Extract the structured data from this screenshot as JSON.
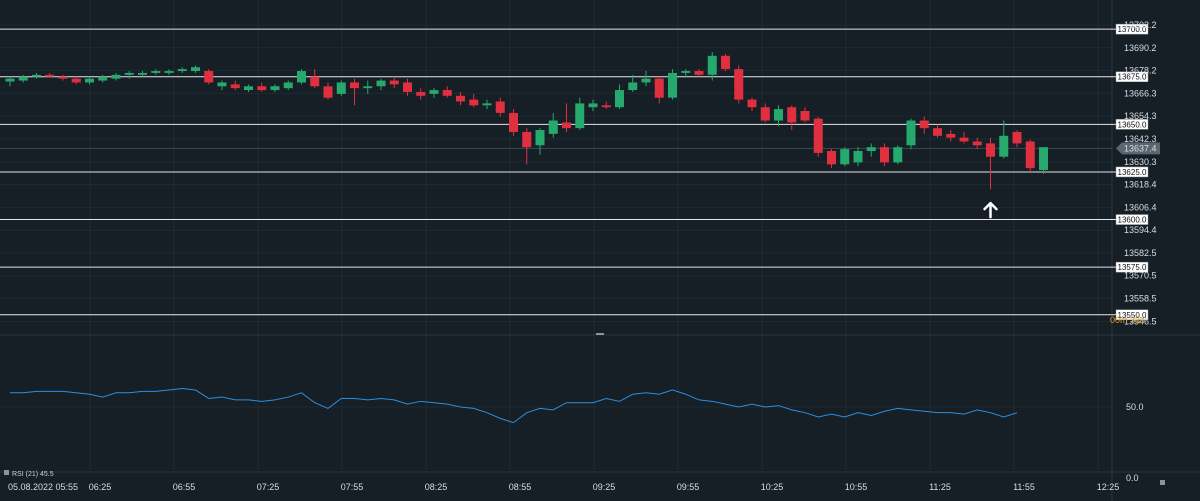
{
  "chart_data": {
    "type": "candlestick",
    "price_axis": {
      "ticks": [
        "13702.2",
        "13690.2",
        "13678.2",
        "13666.3",
        "13654.3",
        "13642.3",
        "13630.3",
        "13618.4",
        "13606.4",
        "13594.4",
        "13582.5",
        "13570.5",
        "13558.5",
        "13546.5"
      ],
      "ylim": [
        13542,
        13709
      ]
    },
    "levels": [
      13700.0,
      13675.0,
      13650.0,
      13625.0,
      13600.0,
      13575.0,
      13550.0
    ],
    "level_labels": [
      "13700.0",
      "13675.0",
      "13650.0",
      "13625.0",
      "13600.0",
      "13575.0",
      "13550.0"
    ],
    "current_price": 13637.4,
    "current_price_label": "13637.4",
    "countdown": {
      "minutes": "00m",
      "seconds": "33s"
    },
    "time_axis": {
      "date_label": "05.08.2022 05:55",
      "labels": [
        "06:25",
        "06:55",
        "07:25",
        "07:55",
        "08:25",
        "08:55",
        "09:25",
        "09:55",
        "10:25",
        "10:55",
        "11:25",
        "11:55",
        "12:25"
      ]
    },
    "candles": [
      {
        "o": 13672.5,
        "h": 13675,
        "l": 13670,
        "c": 13674
      },
      {
        "o": 13673,
        "h": 13676,
        "l": 13672,
        "c": 13675
      },
      {
        "o": 13675,
        "h": 13677,
        "l": 13674,
        "c": 13676
      },
      {
        "o": 13676,
        "h": 13677,
        "l": 13675,
        "c": 13675
      },
      {
        "o": 13675,
        "h": 13676,
        "l": 13673,
        "c": 13674
      },
      {
        "o": 13674,
        "h": 13675,
        "l": 13671,
        "c": 13672
      },
      {
        "o": 13672,
        "h": 13675,
        "l": 13671,
        "c": 13674
      },
      {
        "o": 13673,
        "h": 13676,
        "l": 13672,
        "c": 13675
      },
      {
        "o": 13674,
        "h": 13677,
        "l": 13673,
        "c": 13676
      },
      {
        "o": 13676,
        "h": 13678,
        "l": 13674,
        "c": 13677
      },
      {
        "o": 13676,
        "h": 13678,
        "l": 13675,
        "c": 13677
      },
      {
        "o": 13677,
        "h": 13679,
        "l": 13676,
        "c": 13678
      },
      {
        "o": 13677,
        "h": 13679,
        "l": 13676,
        "c": 13678
      },
      {
        "o": 13678,
        "h": 13680,
        "l": 13677,
        "c": 13679
      },
      {
        "o": 13678,
        "h": 13681,
        "l": 13677,
        "c": 13680
      },
      {
        "o": 13678,
        "h": 13679,
        "l": 13671,
        "c": 13672
      },
      {
        "o": 13670,
        "h": 13673,
        "l": 13668,
        "c": 13672
      },
      {
        "o": 13671,
        "h": 13673,
        "l": 13668,
        "c": 13669
      },
      {
        "o": 13668,
        "h": 13671,
        "l": 13667,
        "c": 13670
      },
      {
        "o": 13670,
        "h": 13672,
        "l": 13667,
        "c": 13668
      },
      {
        "o": 13668,
        "h": 13671,
        "l": 13667,
        "c": 13670
      },
      {
        "o": 13669,
        "h": 13673,
        "l": 13668,
        "c": 13672
      },
      {
        "o": 13672,
        "h": 13679,
        "l": 13671,
        "c": 13678
      },
      {
        "o": 13675,
        "h": 13679,
        "l": 13669,
        "c": 13670
      },
      {
        "o": 13670,
        "h": 13672,
        "l": 13663,
        "c": 13664
      },
      {
        "o": 13666,
        "h": 13673,
        "l": 13665,
        "c": 13672
      },
      {
        "o": 13672,
        "h": 13674,
        "l": 13660,
        "c": 13669
      },
      {
        "o": 13669,
        "h": 13673,
        "l": 13666,
        "c": 13670
      },
      {
        "o": 13670,
        "h": 13674,
        "l": 13668,
        "c": 13673
      },
      {
        "o": 13673,
        "h": 13675,
        "l": 13669,
        "c": 13671
      },
      {
        "o": 13672,
        "h": 13674,
        "l": 13665,
        "c": 13667
      },
      {
        "o": 13667,
        "h": 13669,
        "l": 13663,
        "c": 13665
      },
      {
        "o": 13666,
        "h": 13669,
        "l": 13664,
        "c": 13668
      },
      {
        "o": 13668,
        "h": 13670,
        "l": 13664,
        "c": 13665
      },
      {
        "o": 13665,
        "h": 13667,
        "l": 13660,
        "c": 13662
      },
      {
        "o": 13663,
        "h": 13666,
        "l": 13659,
        "c": 13660
      },
      {
        "o": 13660,
        "h": 13663,
        "l": 13658,
        "c": 13661
      },
      {
        "o": 13662,
        "h": 13664,
        "l": 13654,
        "c": 13656
      },
      {
        "o": 13656,
        "h": 13658,
        "l": 13644,
        "c": 13646
      },
      {
        "o": 13646,
        "h": 13648,
        "l": 13629,
        "c": 13638
      },
      {
        "o": 13639,
        "h": 13648,
        "l": 13634,
        "c": 13647
      },
      {
        "o": 13645,
        "h": 13656,
        "l": 13643,
        "c": 13652
      },
      {
        "o": 13651,
        "h": 13661,
        "l": 13646,
        "c": 13648
      },
      {
        "o": 13648,
        "h": 13664,
        "l": 13647,
        "c": 13661
      },
      {
        "o": 13659,
        "h": 13663,
        "l": 13657,
        "c": 13661
      },
      {
        "o": 13660,
        "h": 13662,
        "l": 13658,
        "c": 13659
      },
      {
        "o": 13659,
        "h": 13671,
        "l": 13658,
        "c": 13668
      },
      {
        "o": 13668,
        "h": 13676,
        "l": 13667,
        "c": 13672
      },
      {
        "o": 13672,
        "h": 13678,
        "l": 13670,
        "c": 13674
      },
      {
        "o": 13674,
        "h": 13675,
        "l": 13661,
        "c": 13664
      },
      {
        "o": 13664,
        "h": 13679,
        "l": 13663,
        "c": 13677
      },
      {
        "o": 13677,
        "h": 13679,
        "l": 13675,
        "c": 13678
      },
      {
        "o": 13678,
        "h": 13679,
        "l": 13675,
        "c": 13676
      },
      {
        "o": 13676,
        "h": 13688,
        "l": 13673,
        "c": 13686
      },
      {
        "o": 13686,
        "h": 13687,
        "l": 13678,
        "c": 13679
      },
      {
        "o": 13679,
        "h": 13681,
        "l": 13661,
        "c": 13663
      },
      {
        "o": 13663,
        "h": 13664,
        "l": 13657,
        "c": 13659
      },
      {
        "o": 13659,
        "h": 13661,
        "l": 13651,
        "c": 13652
      },
      {
        "o": 13652,
        "h": 13660,
        "l": 13649,
        "c": 13658
      },
      {
        "o": 13659,
        "h": 13660,
        "l": 13647,
        "c": 13651
      },
      {
        "o": 13657,
        "h": 13659,
        "l": 13651,
        "c": 13652
      },
      {
        "o": 13653,
        "h": 13654,
        "l": 13633,
        "c": 13635
      },
      {
        "o": 13636,
        "h": 13637,
        "l": 13627,
        "c": 13629
      },
      {
        "o": 13629,
        "h": 13638,
        "l": 13628,
        "c": 13637
      },
      {
        "o": 13630,
        "h": 13638,
        "l": 13628,
        "c": 13636
      },
      {
        "o": 13636,
        "h": 13640,
        "l": 13633,
        "c": 13638
      },
      {
        "o": 13638,
        "h": 13640,
        "l": 13628,
        "c": 13630
      },
      {
        "o": 13630,
        "h": 13639,
        "l": 13629,
        "c": 13638
      },
      {
        "o": 13639,
        "h": 13653,
        "l": 13637,
        "c": 13652
      },
      {
        "o": 13652,
        "h": 13654,
        "l": 13645,
        "c": 13648
      },
      {
        "o": 13648,
        "h": 13650,
        "l": 13643,
        "c": 13644
      },
      {
        "o": 13645,
        "h": 13647,
        "l": 13641,
        "c": 13643
      },
      {
        "o": 13643,
        "h": 13646,
        "l": 13640,
        "c": 13641
      },
      {
        "o": 13641,
        "h": 13643,
        "l": 13637,
        "c": 13639
      },
      {
        "o": 13640,
        "h": 13643,
        "l": 13616,
        "c": 13633
      },
      {
        "o": 13633,
        "h": 13652,
        "l": 13632,
        "c": 13644
      },
      {
        "o": 13646,
        "h": 13647,
        "l": 13638,
        "c": 13640
      },
      {
        "o": 13641,
        "h": 13642,
        "l": 13625,
        "c": 13627
      },
      {
        "o": 13626,
        "h": 13638,
        "l": 13624,
        "c": 13638
      }
    ],
    "rsi": {
      "label": "RSI (21) 45.5",
      "ticks": [
        "50.0",
        "0.0"
      ],
      "values": [
        60,
        60,
        61,
        61,
        61,
        60,
        59,
        57,
        60,
        60,
        61,
        61,
        62,
        63,
        62,
        56,
        57,
        55,
        55,
        54,
        55,
        57,
        60,
        53,
        49,
        56,
        56,
        55,
        56,
        55,
        52,
        54,
        53,
        52,
        50,
        49,
        46,
        42,
        39,
        46,
        49,
        48,
        53,
        53,
        53,
        56,
        54,
        59,
        60,
        59,
        62,
        59,
        55,
        54,
        52,
        50,
        52,
        50,
        51,
        48,
        46,
        43,
        45,
        43,
        46,
        44,
        47,
        49,
        48,
        47,
        46,
        46,
        45,
        48,
        46,
        43,
        46
      ]
    }
  }
}
